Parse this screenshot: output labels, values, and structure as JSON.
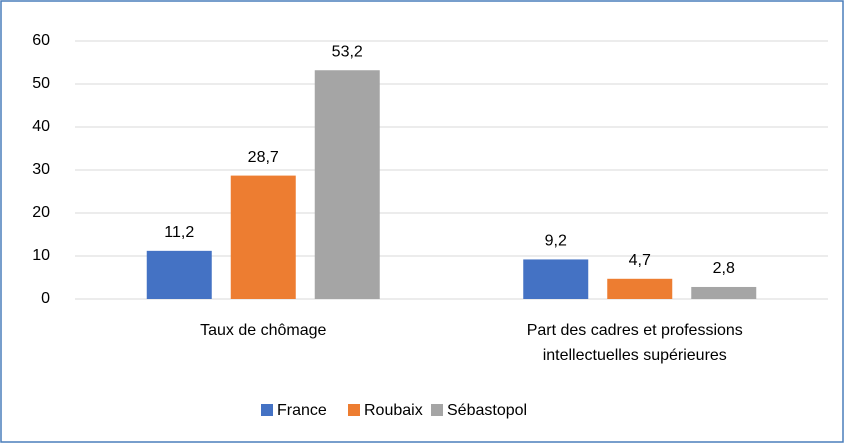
{
  "chart_data": {
    "type": "bar",
    "categories": [
      "Taux de chômage",
      "Part des cadres et professions intellectuelles supérieures"
    ],
    "series": [
      {
        "name": "France",
        "color": "#4472c4",
        "values": [
          11.2,
          9.2
        ],
        "value_labels": [
          "11,2",
          "9,2"
        ]
      },
      {
        "name": "Roubaix",
        "color": "#ed7d31",
        "values": [
          28.7,
          4.7
        ],
        "value_labels": [
          "28,7",
          "4,7"
        ]
      },
      {
        "name": "Sébastopol",
        "color": "#a5a5a5",
        "values": [
          53.2,
          2.8
        ],
        "value_labels": [
          "53,2",
          "2,8"
        ]
      }
    ],
    "ylim": [
      0,
      60
    ],
    "yticks": [
      0,
      10,
      20,
      30,
      40,
      50,
      60
    ],
    "grid": true,
    "legend": "bottom"
  }
}
